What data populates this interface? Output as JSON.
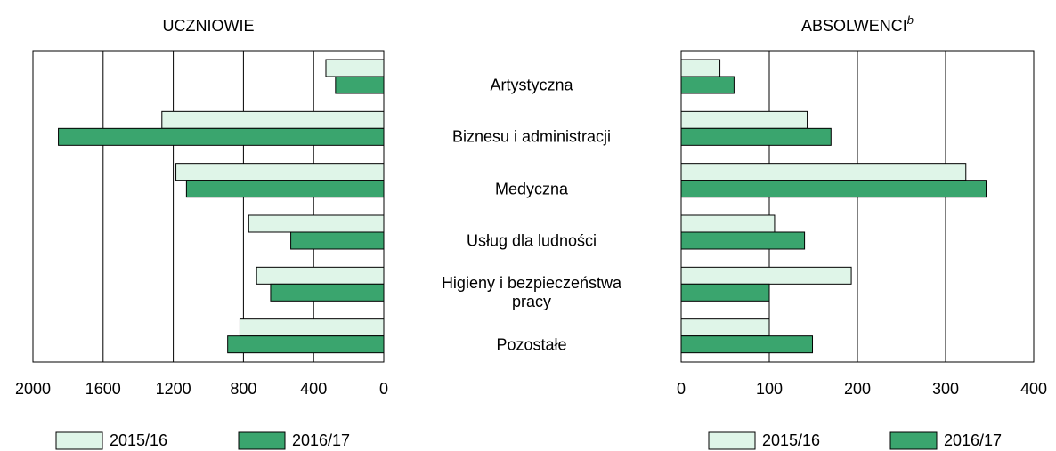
{
  "chart_data": [
    {
      "type": "barh",
      "title": "UCZNIOWIE",
      "categories": [
        "Artystyczna",
        "Biznesu i administracji",
        "Medyczna",
        "Usług dla ludności",
        "Higieny i bezpieczeństwa pracy",
        "Pozostałe"
      ],
      "series": [
        {
          "name": "2015/16",
          "color": "#dff5e8",
          "values": [
            330,
            1265,
            1185,
            770,
            725,
            820
          ]
        },
        {
          "name": "2016/17",
          "color": "#3aa56e",
          "values": [
            275,
            1855,
            1125,
            530,
            645,
            890
          ]
        }
      ],
      "xlim": [
        2000,
        0
      ],
      "xticks": [
        2000,
        1600,
        1200,
        800,
        400,
        0
      ],
      "grid": true
    },
    {
      "type": "barh",
      "title": "ABSOLWENCI",
      "title_superscript": "b",
      "series": [
        {
          "name": "2015/16",
          "color": "#dff5e8",
          "values": [
            44,
            143,
            323,
            106,
            193,
            100
          ]
        },
        {
          "name": "2016/17",
          "color": "#3aa56e",
          "values": [
            60,
            170,
            346,
            140,
            100,
            149
          ]
        }
      ],
      "xlim": [
        0,
        400
      ],
      "xticks": [
        0,
        100,
        200,
        300,
        400
      ],
      "grid": true
    }
  ]
}
